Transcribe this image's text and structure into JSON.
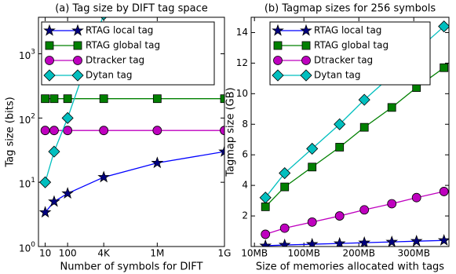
{
  "chart_data": [
    {
      "type": "line",
      "title": "(a) Tag size by DIFT tag space",
      "xlabel": "Number of symbols for DIFT",
      "ylabel": "Tag size (bits)",
      "xscale": "log",
      "yscale": "log",
      "xlim": [
        5,
        1000000000
      ],
      "ylim": [
        1,
        3700
      ],
      "xticks": [
        10,
        100,
        {
          "value": 4096,
          "label": "4K"
        },
        {
          "value": 1000000,
          "label": "1M"
        },
        {
          "value": 1000000000,
          "label": "1G"
        }
      ],
      "yticks": [
        {
          "value": 1,
          "label": "10^0"
        },
        {
          "value": 10,
          "label": "10^1"
        },
        {
          "value": 100,
          "label": "10^2"
        },
        {
          "value": 1000,
          "label": "10^3"
        }
      ],
      "legend": "upper left",
      "x": [
        10,
        25,
        100,
        4096,
        1000000,
        1000000000
      ],
      "series": [
        {
          "name": "RTAG local tag",
          "color": "#0000ff",
          "fill": "#000080",
          "marker": "star",
          "values": [
            3.4,
            5,
            6.7,
            12,
            20,
            30
          ]
        },
        {
          "name": "RTAG global tag",
          "color": "#008000",
          "fill": "#008000",
          "marker": "square",
          "values": [
            200,
            200,
            200,
            200,
            200,
            200
          ]
        },
        {
          "name": "Dtracker tag",
          "color": "#bf00bf",
          "fill": "#bf00bf",
          "marker": "circle",
          "values": [
            64,
            64,
            64,
            64,
            64,
            64
          ]
        },
        {
          "name": "Dytan tag",
          "color": "#00bfbf",
          "fill": "#00bfbf",
          "marker": "diamond",
          "values": [
            10,
            30,
            100,
            4096,
            null,
            null
          ]
        }
      ]
    },
    {
      "type": "line",
      "title": "(b) Tagmap sizes for 256 symbols",
      "xlabel": "Size of memories allocated with tags",
      "ylabel": "Tagmap size (GB)",
      "xscale": "linear",
      "yscale": "linear",
      "xlim": [
        4,
        364
      ],
      "ylim": [
        0,
        15
      ],
      "xticks": [
        {
          "value": 10,
          "label": "10MB"
        },
        {
          "value": 100,
          "label": "100MB"
        },
        {
          "value": 200,
          "label": "200MB"
        },
        {
          "value": 300,
          "label": "300MB"
        }
      ],
      "yticks": [
        2,
        4,
        6,
        8,
        10,
        12,
        14
      ],
      "legend": "upper left",
      "x": [
        30,
        65,
        115,
        165,
        210,
        260,
        305,
        355
      ],
      "series": [
        {
          "name": "RTAG local tag",
          "color": "#0000ff",
          "fill": "#000080",
          "marker": "star",
          "values": [
            0.05,
            0.1,
            0.15,
            0.2,
            0.25,
            0.3,
            0.35,
            0.4
          ]
        },
        {
          "name": "RTAG global tag",
          "color": "#008000",
          "fill": "#008000",
          "marker": "square",
          "values": [
            2.6,
            3.9,
            5.2,
            6.5,
            7.8,
            9.1,
            10.4,
            11.7
          ]
        },
        {
          "name": "Dtracker tag",
          "color": "#bf00bf",
          "fill": "#bf00bf",
          "marker": "circle",
          "values": [
            0.8,
            1.2,
            1.6,
            2.0,
            2.4,
            2.8,
            3.2,
            3.6
          ]
        },
        {
          "name": "Dytan tag",
          "color": "#00bfbf",
          "fill": "#00bfbf",
          "marker": "diamond",
          "values": [
            3.2,
            4.8,
            6.4,
            8.0,
            9.6,
            11.2,
            12.8,
            14.4
          ]
        }
      ]
    }
  ]
}
